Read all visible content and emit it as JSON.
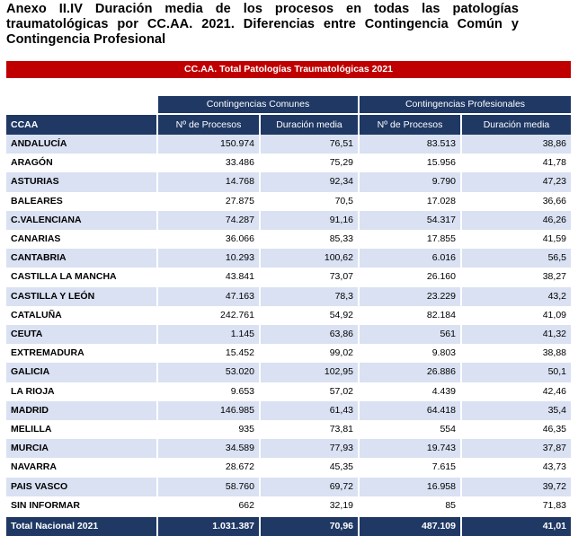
{
  "title_lines": [
    "Anexo II.IV Duración media de los procesos en todas las patologías",
    "traumatológicas por CC.AA. 2021. Diferencias entre Contingencia Común y",
    "Contingencia Profesional"
  ],
  "banner": "CC.AA. Total Patologías Traumatológicas 2021",
  "group_headers": {
    "comunes": "Contingencias Comunes",
    "profesionales": "Contingencias Profesionales"
  },
  "col_headers": {
    "ccaa": "CCAA",
    "procesos_cc": "Nº de Procesos",
    "duracion_cc": "Duración media",
    "procesos_cp": "Nº de Procesos",
    "duracion_cp": "Duración media"
  },
  "rows": [
    [
      "ANDALUCÍA",
      "150.974",
      "76,51",
      "83.513",
      "38,86"
    ],
    [
      "ARAGÓN",
      "33.486",
      "75,29",
      "15.956",
      "41,78"
    ],
    [
      "ASTURIAS",
      "14.768",
      "92,34",
      "9.790",
      "47,23"
    ],
    [
      "BALEARES",
      "27.875",
      "70,5",
      "17.028",
      "36,66"
    ],
    [
      "C.VALENCIANA",
      "74.287",
      "91,16",
      "54.317",
      "46,26"
    ],
    [
      "CANARIAS",
      "36.066",
      "85,33",
      "17.855",
      "41,59"
    ],
    [
      "CANTABRIA",
      "10.293",
      "100,62",
      "6.016",
      "56,5"
    ],
    [
      "CASTILLA LA MANCHA",
      "43.841",
      "73,07",
      "26.160",
      "38,27"
    ],
    [
      "CASTILLA Y LEÓN",
      "47.163",
      "78,3",
      "23.229",
      "43,2"
    ],
    [
      "CATALUÑA",
      "242.761",
      "54,92",
      "82.184",
      "41,09"
    ],
    [
      "CEUTA",
      "1.145",
      "63,86",
      "561",
      "41,32"
    ],
    [
      "EXTREMADURA",
      "15.452",
      "99,02",
      "9.803",
      "38,88"
    ],
    [
      "GALICIA",
      "53.020",
      "102,95",
      "26.886",
      "50,1"
    ],
    [
      "LA RIOJA",
      "9.653",
      "57,02",
      "4.439",
      "42,46"
    ],
    [
      "MADRID",
      "146.985",
      "61,43",
      "64.418",
      "35,4"
    ],
    [
      "MELILLA",
      "935",
      "73,81",
      "554",
      "46,35"
    ],
    [
      "MURCIA",
      "34.589",
      "77,93",
      "19.743",
      "37,87"
    ],
    [
      "NAVARRA",
      "28.672",
      "45,35",
      "7.615",
      "43,73"
    ],
    [
      "PAIS VASCO",
      "58.760",
      "69,72",
      "16.958",
      "39,72"
    ],
    [
      "SIN INFORMAR",
      "662",
      "32,19",
      "85",
      "71,83"
    ]
  ],
  "total": [
    "Total Nacional 2021",
    "1.031.387",
    "70,96",
    "487.109",
    "41,01"
  ],
  "colors": {
    "banner": "#c00000",
    "header": "#1f3864",
    "stripe": "#d9e1f2"
  }
}
